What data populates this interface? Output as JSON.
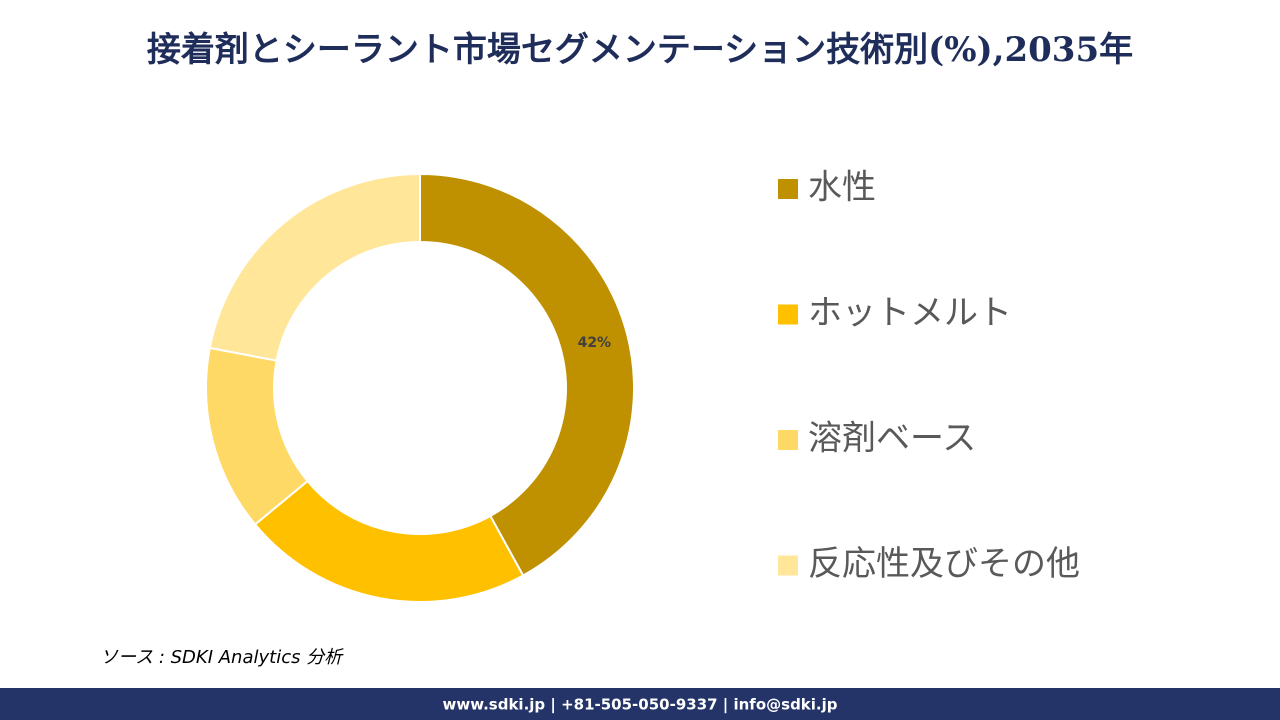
{
  "chart_data": {
    "type": "donut",
    "title": "接着剤とシーラント市場セグメンテーション技術別(%),2035年",
    "categories": [
      "水性",
      "ホットメルト",
      "溶剤ベース",
      "反応性及びその他"
    ],
    "values": [
      42,
      22,
      14,
      22
    ],
    "value_labels": [
      "42%",
      null,
      null,
      null
    ],
    "colors": [
      "#bf9000",
      "#ffc000",
      "#ffd966",
      "#ffe699"
    ],
    "legend": "right",
    "source": "ソース : SDKI Analytics 分析",
    "footer": "www.sdki.jp | +81-505-050-9337 | info@sdki.jp"
  }
}
